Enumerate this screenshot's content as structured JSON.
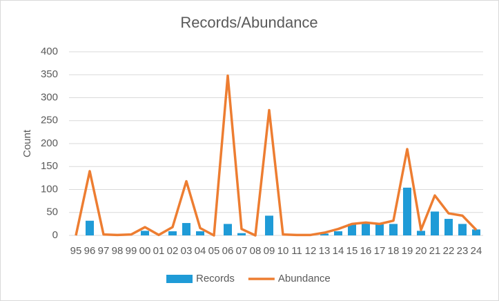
{
  "chart_data": {
    "type": "bar",
    "title": "Records/Abundance",
    "y_label": "Count",
    "categories": [
      "95",
      "96",
      "97",
      "98",
      "99",
      "00",
      "01",
      "02",
      "03",
      "04",
      "05",
      "06",
      "07",
      "08",
      "09",
      "10",
      "11",
      "12",
      "13",
      "14",
      "15",
      "16",
      "17",
      "18",
      "19",
      "20",
      "21",
      "22",
      "23",
      "24"
    ],
    "series": [
      {
        "name": "Records",
        "type": "bar",
        "color": "#1f9bd7",
        "values": [
          0,
          32,
          0,
          0,
          0,
          10,
          0,
          9,
          27,
          9,
          0,
          25,
          5,
          0,
          43,
          0,
          0,
          0,
          4,
          9,
          25,
          27,
          24,
          25,
          104,
          10,
          52,
          36,
          25,
          13
        ]
      },
      {
        "name": "Abundance",
        "type": "line",
        "color": "#ed7d31",
        "values": [
          0,
          140,
          2,
          1,
          2,
          18,
          1,
          18,
          118,
          16,
          0,
          348,
          14,
          0,
          273,
          2,
          1,
          1,
          6,
          14,
          25,
          28,
          25,
          32,
          188,
          12,
          87,
          48,
          43,
          12
        ]
      }
    ],
    "ylim": [
      0,
      400
    ],
    "yticks": [
      0,
      50,
      100,
      150,
      200,
      250,
      300,
      350,
      400
    ],
    "grid": true,
    "legend": "bottom"
  }
}
